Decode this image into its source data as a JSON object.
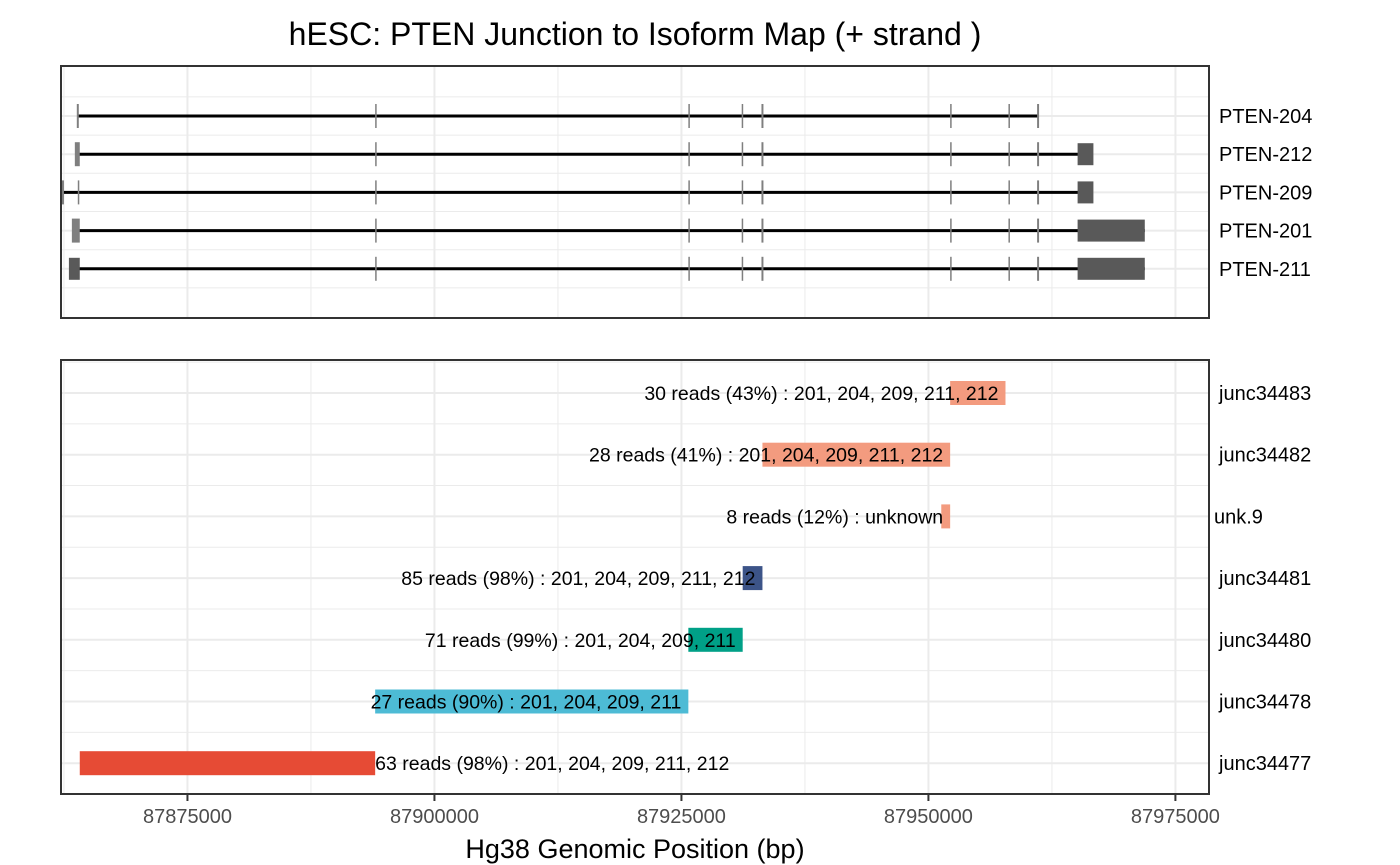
{
  "chart_data": {
    "type": "bar",
    "title": "hESC: PTEN Junction to Isoform Map (+ strand )",
    "xlabel": "Hg38 Genomic Position (bp)",
    "ylabel": "",
    "xlim": [
      87862200,
      87978400
    ],
    "x_ticks": [
      87875000,
      87900000,
      87925000,
      87950000,
      87975000
    ],
    "x_tick_labels": [
      "87875000",
      "87900000",
      "87925000",
      "87950000",
      "87975000"
    ],
    "grid": true,
    "legend": "none",
    "isoforms": [
      {
        "name": "PTEN-204",
        "start": 87863900,
        "end": 87961100,
        "exons": [
          [
            87863800,
            87864000
          ],
          [
            87894000,
            87894100
          ],
          [
            87925700,
            87925800
          ],
          [
            87931100,
            87931200
          ],
          [
            87933100,
            87933300
          ],
          [
            87952200,
            87952300
          ],
          [
            87958100,
            87958200
          ],
          [
            87961000,
            87961200
          ]
        ]
      },
      {
        "name": "PTEN-212",
        "start": 87863900,
        "end": 87966600,
        "exons": [
          [
            87863600,
            87864100
          ],
          [
            87894000,
            87894100
          ],
          [
            87925700,
            87925800
          ],
          [
            87931100,
            87931200
          ],
          [
            87933100,
            87933300
          ],
          [
            87952200,
            87952300
          ],
          [
            87958100,
            87958200
          ],
          [
            87961000,
            87961200
          ],
          [
            87965100,
            87966700
          ]
        ]
      },
      {
        "name": "PTEN-209",
        "start": 87862400,
        "end": 87966600,
        "exons": [
          [
            87862100,
            87862500
          ],
          [
            87863900,
            87864000
          ],
          [
            87894000,
            87894100
          ],
          [
            87925700,
            87925800
          ],
          [
            87931100,
            87931200
          ],
          [
            87933100,
            87933300
          ],
          [
            87952200,
            87952300
          ],
          [
            87958100,
            87958200
          ],
          [
            87961000,
            87961200
          ],
          [
            87965100,
            87966700
          ]
        ]
      },
      {
        "name": "PTEN-201",
        "start": 87863900,
        "end": 87971900,
        "exons": [
          [
            87863300,
            87864100
          ],
          [
            87894000,
            87894100
          ],
          [
            87925700,
            87925800
          ],
          [
            87931100,
            87931200
          ],
          [
            87933100,
            87933300
          ],
          [
            87952200,
            87952300
          ],
          [
            87958100,
            87958200
          ],
          [
            87961000,
            87961200
          ],
          [
            87965100,
            87971900
          ]
        ]
      },
      {
        "name": "PTEN-211",
        "start": 87863900,
        "end": 87971900,
        "exons": [
          [
            87863000,
            87864100
          ],
          [
            87894000,
            87894100
          ],
          [
            87925700,
            87925800
          ],
          [
            87931100,
            87931200
          ],
          [
            87933100,
            87933300
          ],
          [
            87952200,
            87952300
          ],
          [
            87958100,
            87958200
          ],
          [
            87961000,
            87961200
          ],
          [
            87965100,
            87971900
          ]
        ]
      }
    ],
    "junctions": [
      {
        "name": "junc34483",
        "start": 87952200,
        "end": 87957800,
        "color": "#F39B7F",
        "label": "30 reads (43%) : 201, 204, 209, 211, 212"
      },
      {
        "name": "junc34482",
        "start": 87933200,
        "end": 87952200,
        "color": "#F39B7F",
        "label": "28 reads (41%) : 201, 204, 209, 211, 212"
      },
      {
        "name": "unk.9",
        "start": 87951300,
        "end": 87952200,
        "color": "#F39B7F",
        "label": "8 reads (12%) : unknown"
      },
      {
        "name": "junc34481",
        "start": 87931200,
        "end": 87933200,
        "color": "#3C5488",
        "label": "85 reads (98%) : 201, 204, 209, 211, 212"
      },
      {
        "name": "junc34480",
        "start": 87925700,
        "end": 87931200,
        "color": "#00A087",
        "label": "71 reads (99%) : 201, 204, 209, 211"
      },
      {
        "name": "junc34478",
        "start": 87894000,
        "end": 87925700,
        "color": "#4DBBD5",
        "label": "27 reads (90%) : 201, 204, 209, 211"
      },
      {
        "name": "junc34477",
        "start": 87864100,
        "end": 87894000,
        "color": "#E64B35",
        "label": "63 reads (98%) : 201, 204, 209, 211, 212"
      }
    ]
  },
  "colors": {
    "intron_line": "#000000",
    "exon": "#595959",
    "grid": "#ebebeb",
    "panel_border": "#333333"
  }
}
